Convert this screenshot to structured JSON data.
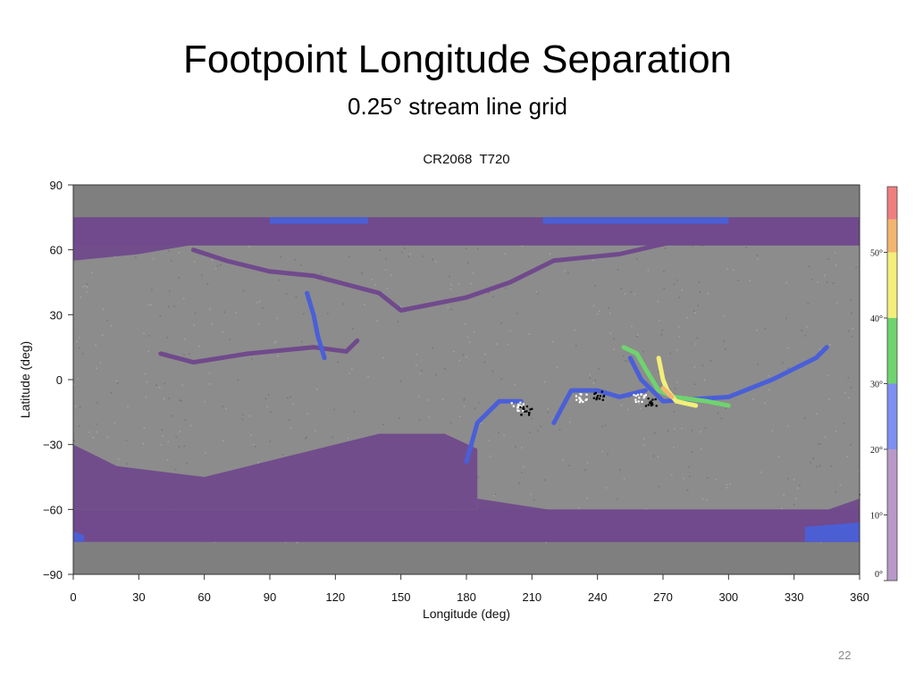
{
  "slide": {
    "title": "Footpoint Longitude Separation",
    "subtitle": "0.25° stream line grid",
    "page_number": "22"
  },
  "chart_data": {
    "type": "heatmap",
    "title": "CR2068  T720",
    "xlabel": "Longitude (deg)",
    "ylabel": "Latitude (deg)",
    "xlim": [
      0,
      360
    ],
    "ylim": [
      -90,
      90
    ],
    "xticks": [
      0,
      30,
      60,
      90,
      120,
      150,
      180,
      210,
      240,
      270,
      300,
      330,
      360
    ],
    "yticks": [
      90,
      60,
      30,
      0,
      -30,
      -60,
      -90
    ],
    "ytick_labels": [
      "90",
      "60",
      "30",
      "0",
      "−30",
      "−60",
      "−90"
    ],
    "grid": false,
    "background_color": "#8c8c8c",
    "no_data_color": "#7f7f7f",
    "data_lat_range": [
      -75,
      75
    ],
    "colorbar": {
      "min": 0,
      "max": 60,
      "labels": [
        "0°",
        "10°",
        "20°",
        "30°",
        "40°",
        "50°"
      ],
      "bands": [
        {
          "from": 0,
          "to": 20,
          "color": "#b799c8",
          "name": "purple"
        },
        {
          "from": 20,
          "to": 30,
          "color": "#7f8ff2",
          "name": "blue"
        },
        {
          "from": 30,
          "to": 40,
          "color": "#6fd36f",
          "name": "green"
        },
        {
          "from": 40,
          "to": 50,
          "color": "#f2ef7a",
          "name": "yellow"
        },
        {
          "from": 50,
          "to": 55,
          "color": "#f2b56f",
          "name": "orange"
        },
        {
          "from": 55,
          "to": 60,
          "color": "#ef7f7f",
          "name": "red"
        }
      ]
    },
    "regions": [
      {
        "kind": "polar-cap",
        "color": "#704a8c",
        "lat": [
          62,
          75
        ],
        "lon": [
          0,
          360
        ]
      },
      {
        "kind": "polar-cap",
        "color": "#704a8c",
        "lat": [
          -75,
          -60
        ],
        "lon": [
          0,
          360
        ]
      },
      {
        "kind": "patch",
        "color": "#704a8c",
        "points": [
          [
            0,
            -30
          ],
          [
            20,
            -40
          ],
          [
            60,
            -45
          ],
          [
            100,
            -35
          ],
          [
            140,
            -25
          ],
          [
            170,
            -25
          ],
          [
            185,
            -32
          ],
          [
            185,
            -60
          ],
          [
            0,
            -60
          ]
        ]
      },
      {
        "kind": "patch",
        "color": "#704a8c",
        "points": [
          [
            185,
            -55
          ],
          [
            230,
            -62
          ],
          [
            300,
            -65
          ],
          [
            340,
            -62
          ],
          [
            360,
            -55
          ],
          [
            360,
            -75
          ],
          [
            185,
            -75
          ]
        ]
      },
      {
        "kind": "patch",
        "color": "#704a8c",
        "points": [
          [
            0,
            75
          ],
          [
            0,
            55
          ],
          [
            30,
            58
          ],
          [
            70,
            65
          ],
          [
            120,
            68
          ],
          [
            170,
            70
          ],
          [
            240,
            72
          ],
          [
            300,
            72
          ],
          [
            360,
            68
          ],
          [
            360,
            75
          ]
        ]
      },
      {
        "kind": "patch",
        "color": "#4a5fd8",
        "points": [
          [
            90,
            75
          ],
          [
            90,
            72
          ],
          [
            135,
            72
          ],
          [
            135,
            75
          ]
        ]
      },
      {
        "kind": "patch",
        "color": "#4a5fd8",
        "points": [
          [
            215,
            75
          ],
          [
            215,
            72
          ],
          [
            300,
            72
          ],
          [
            300,
            75
          ]
        ]
      },
      {
        "kind": "patch",
        "color": "#4a5fd8",
        "points": [
          [
            335,
            -75
          ],
          [
            335,
            -68
          ],
          [
            360,
            -66
          ],
          [
            360,
            -75
          ]
        ]
      },
      {
        "kind": "patch",
        "color": "#4a5fd8",
        "points": [
          [
            0,
            -75
          ],
          [
            0,
            -70
          ],
          [
            5,
            -72
          ],
          [
            5,
            -75
          ]
        ]
      },
      {
        "kind": "trace",
        "color": "#704a8c",
        "points": [
          [
            40,
            12
          ],
          [
            55,
            8
          ],
          [
            80,
            12
          ],
          [
            110,
            15
          ],
          [
            125,
            13
          ],
          [
            130,
            18
          ]
        ]
      },
      {
        "kind": "trace",
        "color": "#704a8c",
        "points": [
          [
            55,
            60
          ],
          [
            70,
            55
          ],
          [
            90,
            50
          ],
          [
            110,
            48
          ],
          [
            140,
            40
          ],
          [
            150,
            32
          ],
          [
            180,
            38
          ],
          [
            200,
            45
          ],
          [
            220,
            55
          ],
          [
            250,
            58
          ],
          [
            280,
            65
          ]
        ]
      },
      {
        "kind": "trace",
        "color": "#4a5fd8",
        "points": [
          [
            180,
            -38
          ],
          [
            185,
            -20
          ],
          [
            195,
            -10
          ],
          [
            205,
            -10
          ]
        ]
      },
      {
        "kind": "trace",
        "color": "#4a5fd8",
        "points": [
          [
            220,
            -20
          ],
          [
            228,
            -5
          ],
          [
            240,
            -5
          ],
          [
            250,
            -8
          ],
          [
            262,
            -5
          ]
        ]
      },
      {
        "kind": "trace",
        "color": "#4a5fd8",
        "points": [
          [
            107,
            40
          ],
          [
            110,
            30
          ],
          [
            112,
            20
          ],
          [
            115,
            10
          ]
        ]
      },
      {
        "kind": "trace",
        "color": "#4a5fd8",
        "points": [
          [
            255,
            10
          ],
          [
            260,
            0
          ],
          [
            265,
            -5
          ],
          [
            270,
            -10
          ],
          [
            300,
            -8
          ],
          [
            320,
            0
          ],
          [
            340,
            10
          ],
          [
            345,
            15
          ]
        ]
      },
      {
        "kind": "trace",
        "color": "#6fd36f",
        "points": [
          [
            252,
            15
          ],
          [
            258,
            12
          ],
          [
            262,
            5
          ],
          [
            268,
            -5
          ],
          [
            275,
            -8
          ],
          [
            290,
            -10
          ],
          [
            300,
            -12
          ]
        ]
      },
      {
        "kind": "trace",
        "color": "#f2ef7a",
        "points": [
          [
            268,
            10
          ],
          [
            270,
            0
          ],
          [
            272,
            -5
          ],
          [
            276,
            -10
          ],
          [
            285,
            -12
          ]
        ]
      },
      {
        "kind": "trace",
        "color": "#f2b56f",
        "points": [
          [
            270,
            -4
          ],
          [
            274,
            -8
          ]
        ]
      }
    ],
    "sunspots": [
      {
        "lon": 203,
        "lat": -12,
        "color": "#ffffff"
      },
      {
        "lon": 207,
        "lat": -14,
        "color": "#000000"
      },
      {
        "lon": 232,
        "lat": -8,
        "color": "#ffffff"
      },
      {
        "lon": 240,
        "lat": -7,
        "color": "#000000"
      },
      {
        "lon": 259,
        "lat": -8,
        "color": "#ffffff"
      },
      {
        "lon": 264,
        "lat": -10,
        "color": "#000000"
      }
    ]
  }
}
